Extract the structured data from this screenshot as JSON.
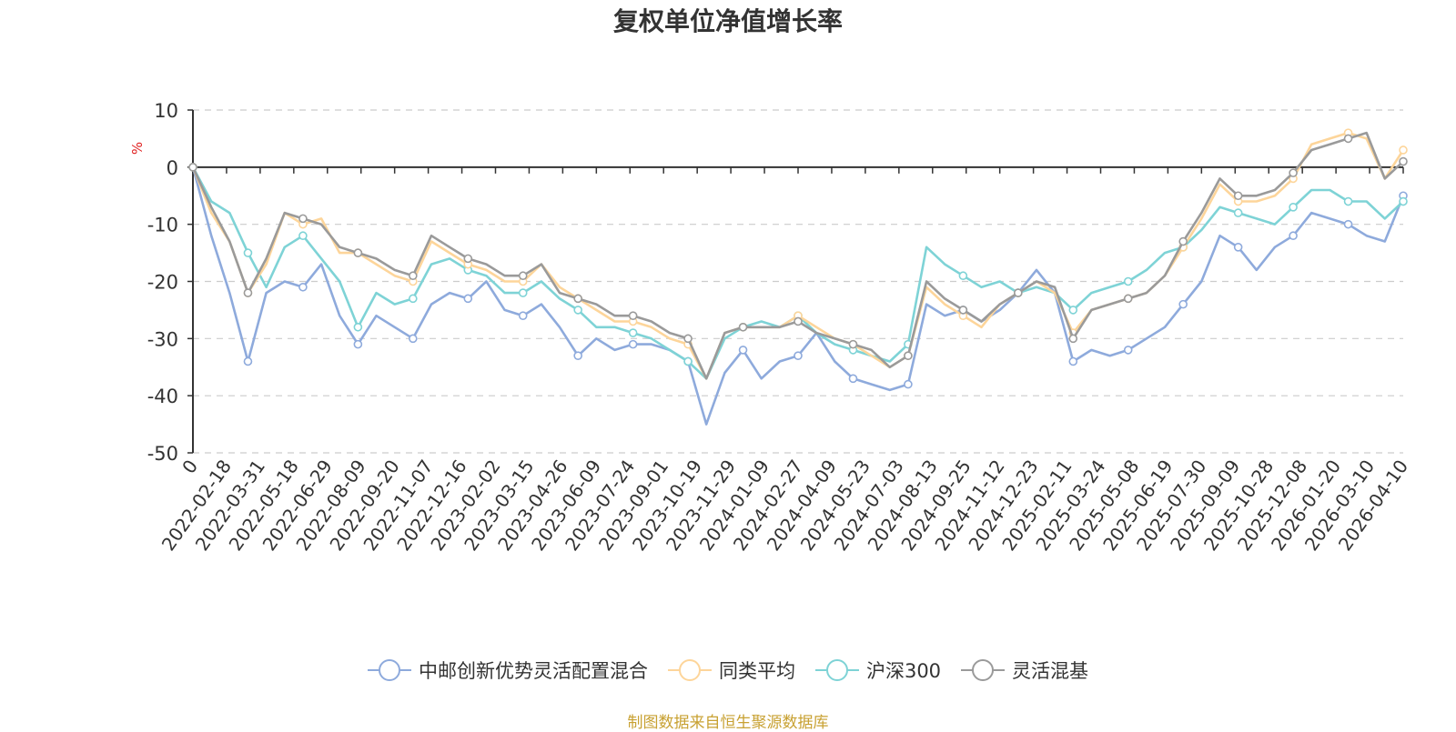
{
  "chart_data": {
    "type": "line",
    "title": "复权单位净值增长率",
    "ylabel": "%",
    "ylim": [
      -50,
      10
    ],
    "yticks": [
      10,
      0,
      -10,
      -20,
      -30,
      -40,
      -50
    ],
    "x_tick_labels": [
      "0",
      "2022-02-18",
      "2022-03-31",
      "2022-05-18",
      "2022-06-29",
      "2022-08-09",
      "2022-09-20",
      "2022-11-07",
      "2022-12-16",
      "2023-02-02",
      "2023-03-15",
      "2023-04-26",
      "2023-06-09",
      "2023-07-24",
      "2023-09-01",
      "2023-10-19",
      "2023-11-29",
      "2024-01-09",
      "2024-02-27",
      "2024-04-09",
      "2024-05-23",
      "2024-07-03",
      "2024-08-13",
      "2024-09-25",
      "2024-11-12",
      "2024-12-23",
      "2025-02-11",
      "2025-03-24",
      "2025-05-08",
      "2025-06-19",
      "2025-07-30",
      "2025-09-09",
      "2025-10-28",
      "2025-12-08",
      "2026-01-20",
      "2026-03-10",
      "2026-04-10"
    ],
    "grid": true,
    "legend_position": "bottom",
    "series": [
      {
        "name": "中邮创新优势灵活配置混合",
        "color": "#8eaadc",
        "values": [
          0,
          -12,
          -22,
          -34,
          -22,
          -20,
          -21,
          -17,
          -26,
          -31,
          -26,
          -28,
          -30,
          -24,
          -22,
          -23,
          -20,
          -25,
          -26,
          -24,
          -28,
          -33,
          -30,
          -32,
          -31,
          -31,
          -32,
          -34,
          -45,
          -36,
          -32,
          -37,
          -34,
          -33,
          -29,
          -34,
          -37,
          -38,
          -39,
          -38,
          -24,
          -26,
          -25,
          -27,
          -25,
          -22,
          -18,
          -22,
          -34,
          -32,
          -33,
          -32,
          -30,
          -28,
          -24,
          -20,
          -12,
          -14,
          -18,
          -14,
          -12,
          -8,
          -9,
          -10,
          -12,
          -13,
          -5
        ]
      },
      {
        "name": "同类平均",
        "color": "#fdd59a",
        "values": [
          0,
          -8,
          -13,
          -22,
          -17,
          -8,
          -10,
          -9,
          -15,
          -15,
          -17,
          -19,
          -20,
          -13,
          -15,
          -17,
          -18,
          -20,
          -20,
          -17,
          -21,
          -23,
          -25,
          -27,
          -27,
          -28,
          -30,
          -31,
          -37,
          -29,
          -28,
          -28,
          -28,
          -26,
          -28,
          -30,
          -31,
          -33,
          -35,
          -33,
          -21,
          -24,
          -26,
          -28,
          -24,
          -22,
          -20,
          -22,
          -29,
          -25,
          -24,
          -23,
          -22,
          -19,
          -14,
          -9,
          -3,
          -6,
          -6,
          -5,
          -2,
          4,
          5,
          6,
          5,
          -2,
          3
        ]
      },
      {
        "name": "沪深300",
        "color": "#7ed3d6",
        "values": [
          0,
          -6,
          -8,
          -15,
          -21,
          -14,
          -12,
          -16,
          -20,
          -28,
          -22,
          -24,
          -23,
          -17,
          -16,
          -18,
          -19,
          -22,
          -22,
          -20,
          -23,
          -25,
          -28,
          -28,
          -29,
          -30,
          -32,
          -34,
          -37,
          -30,
          -28,
          -27,
          -28,
          -26,
          -29,
          -31,
          -32,
          -33,
          -34,
          -31,
          -14,
          -17,
          -19,
          -21,
          -20,
          -22,
          -21,
          -22,
          -25,
          -22,
          -21,
          -20,
          -18,
          -15,
          -14,
          -11,
          -7,
          -8,
          -9,
          -10,
          -7,
          -4,
          -4,
          -6,
          -6,
          -9,
          -6
        ]
      },
      {
        "name": "灵活混基",
        "color": "#9a9a9a",
        "values": [
          0,
          -7,
          -13,
          -22,
          -16,
          -8,
          -9,
          -10,
          -14,
          -15,
          -16,
          -18,
          -19,
          -12,
          -14,
          -16,
          -17,
          -19,
          -19,
          -17,
          -22,
          -23,
          -24,
          -26,
          -26,
          -27,
          -29,
          -30,
          -37,
          -29,
          -28,
          -28,
          -28,
          -27,
          -29,
          -30,
          -31,
          -32,
          -35,
          -33,
          -20,
          -23,
          -25,
          -27,
          -24,
          -22,
          -20,
          -21,
          -30,
          -25,
          -24,
          -23,
          -22,
          -19,
          -13,
          -8,
          -2,
          -5,
          -5,
          -4,
          -1,
          3,
          4,
          5,
          6,
          -2,
          1
        ]
      }
    ]
  },
  "source_text": "制图数据来自恒生聚源数据库",
  "source_color": "#c8a132"
}
